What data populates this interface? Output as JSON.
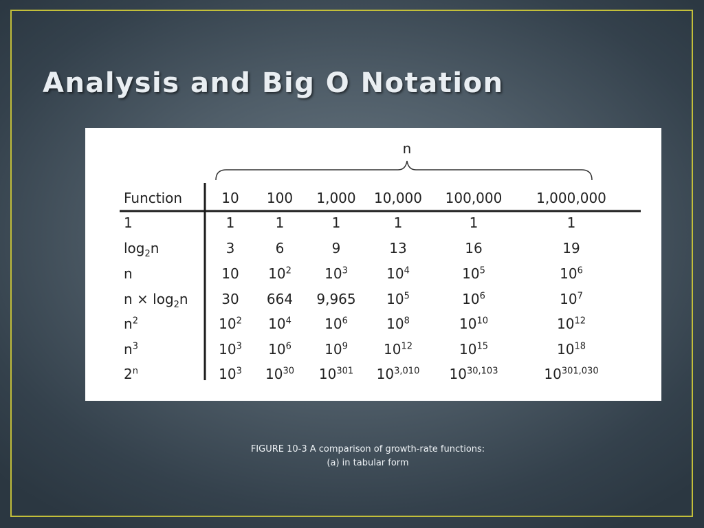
{
  "slide": {
    "title": "Analysis and Big O Notation",
    "caption_line1": "FIGURE 10-3 A comparison of growth-rate functions:",
    "caption_line2": "(a) in tabular form"
  },
  "table": {
    "n_label": "n",
    "function_header": "Function",
    "columns": [
      "10",
      "100",
      "1,000",
      "10,000",
      "100,000",
      "1,000,000"
    ],
    "rows": [
      {
        "fn_base": "1",
        "fn_sub": "",
        "fn_rest": "",
        "fn_sup": "",
        "cells": [
          {
            "b": "1",
            "e": ""
          },
          {
            "b": "1",
            "e": ""
          },
          {
            "b": "1",
            "e": ""
          },
          {
            "b": "1",
            "e": ""
          },
          {
            "b": "1",
            "e": ""
          },
          {
            "b": "1",
            "e": ""
          }
        ]
      },
      {
        "fn_base": "log",
        "fn_sub": "2",
        "fn_rest": "n",
        "fn_sup": "",
        "cells": [
          {
            "b": "3",
            "e": ""
          },
          {
            "b": "6",
            "e": ""
          },
          {
            "b": "9",
            "e": ""
          },
          {
            "b": "13",
            "e": ""
          },
          {
            "b": "16",
            "e": ""
          },
          {
            "b": "19",
            "e": ""
          }
        ]
      },
      {
        "fn_base": "n",
        "fn_sub": "",
        "fn_rest": "",
        "fn_sup": "",
        "cells": [
          {
            "b": "10",
            "e": ""
          },
          {
            "b": "10",
            "e": "2"
          },
          {
            "b": "10",
            "e": "3"
          },
          {
            "b": "10",
            "e": "4"
          },
          {
            "b": "10",
            "e": "5"
          },
          {
            "b": "10",
            "e": "6"
          }
        ]
      },
      {
        "fn_base": "n × log",
        "fn_sub": "2",
        "fn_rest": "n",
        "fn_sup": "",
        "cells": [
          {
            "b": "30",
            "e": ""
          },
          {
            "b": "664",
            "e": ""
          },
          {
            "b": "9,965",
            "e": ""
          },
          {
            "b": "10",
            "e": "5"
          },
          {
            "b": "10",
            "e": "6"
          },
          {
            "b": "10",
            "e": "7"
          }
        ]
      },
      {
        "fn_base": "n",
        "fn_sub": "",
        "fn_rest": "",
        "fn_sup": "2",
        "cells": [
          {
            "b": "10",
            "e": "2"
          },
          {
            "b": "10",
            "e": "4"
          },
          {
            "b": "10",
            "e": "6"
          },
          {
            "b": "10",
            "e": "8"
          },
          {
            "b": "10",
            "e": "10"
          },
          {
            "b": "10",
            "e": "12"
          }
        ]
      },
      {
        "fn_base": "n",
        "fn_sub": "",
        "fn_rest": "",
        "fn_sup": "3",
        "cells": [
          {
            "b": "10",
            "e": "3"
          },
          {
            "b": "10",
            "e": "6"
          },
          {
            "b": "10",
            "e": "9"
          },
          {
            "b": "10",
            "e": "12"
          },
          {
            "b": "10",
            "e": "15"
          },
          {
            "b": "10",
            "e": "18"
          }
        ]
      },
      {
        "fn_base": "2",
        "fn_sub": "",
        "fn_rest": "",
        "fn_sup": "n",
        "cells": [
          {
            "b": "10",
            "e": "3"
          },
          {
            "b": "10",
            "e": "30"
          },
          {
            "b": "10",
            "e": "301"
          },
          {
            "b": "10",
            "e": "3,010"
          },
          {
            "b": "10",
            "e": "30,103"
          },
          {
            "b": "10",
            "e": "301,030"
          }
        ]
      }
    ]
  }
}
